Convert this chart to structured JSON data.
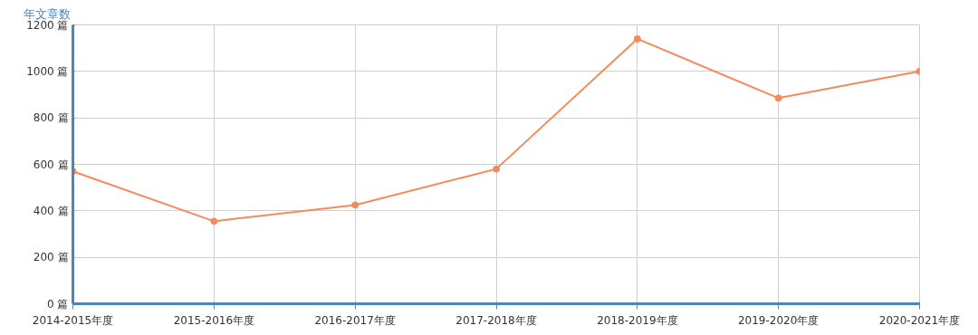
{
  "chart_data": {
    "type": "line",
    "ylabel": "年文章数",
    "categories": [
      "2014-2015年度",
      "2015-2016年度",
      "2016-2017年度",
      "2017-2018年度",
      "2018-2019年度",
      "2019-2020年度",
      "2020-2021年度"
    ],
    "series": [
      {
        "color": "#f58a5a",
        "values": [
          570,
          355,
          425,
          580,
          1140,
          885,
          1000
        ]
      }
    ],
    "ylim": [
      0,
      1200
    ],
    "yticks": [
      {
        "value": 0,
        "label": "0 篇"
      },
      {
        "value": 200,
        "label": "200 篇"
      },
      {
        "value": 400,
        "label": "400 篇"
      },
      {
        "value": 600,
        "label": "600 篇"
      },
      {
        "value": 800,
        "label": "800 篇"
      },
      {
        "value": 1000,
        "label": "1000 篇"
      },
      {
        "value": 1200,
        "label": "1200 篇"
      }
    ],
    "grid": true,
    "marker": "circle",
    "line_style": "solid"
  }
}
